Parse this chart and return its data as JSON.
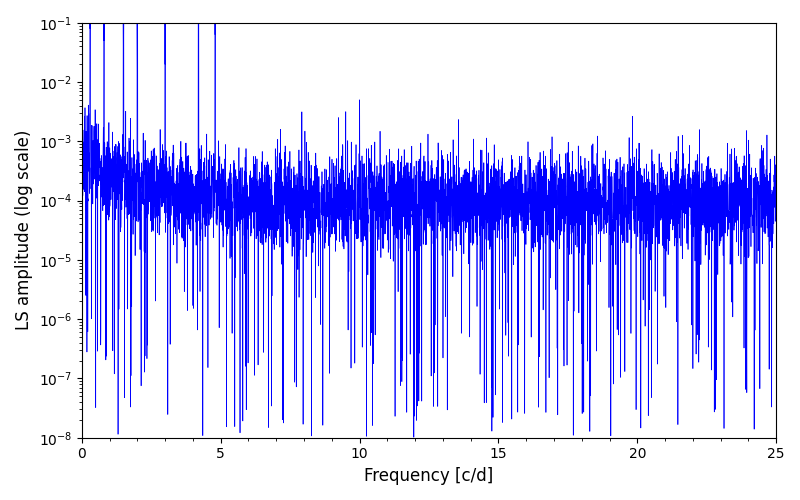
{
  "title": "",
  "xlabel": "Frequency [c/d]",
  "ylabel": "LS amplitude (log scale)",
  "xlim": [
    0,
    25
  ],
  "ylim": [
    1e-08,
    0.1
  ],
  "line_color": "#0000ff",
  "line_width": 0.5,
  "background_color": "#ffffff",
  "n_points": 5000,
  "freq_max": 25.0,
  "seed": 7,
  "figsize": [
    8.0,
    5.0
  ],
  "dpi": 100
}
